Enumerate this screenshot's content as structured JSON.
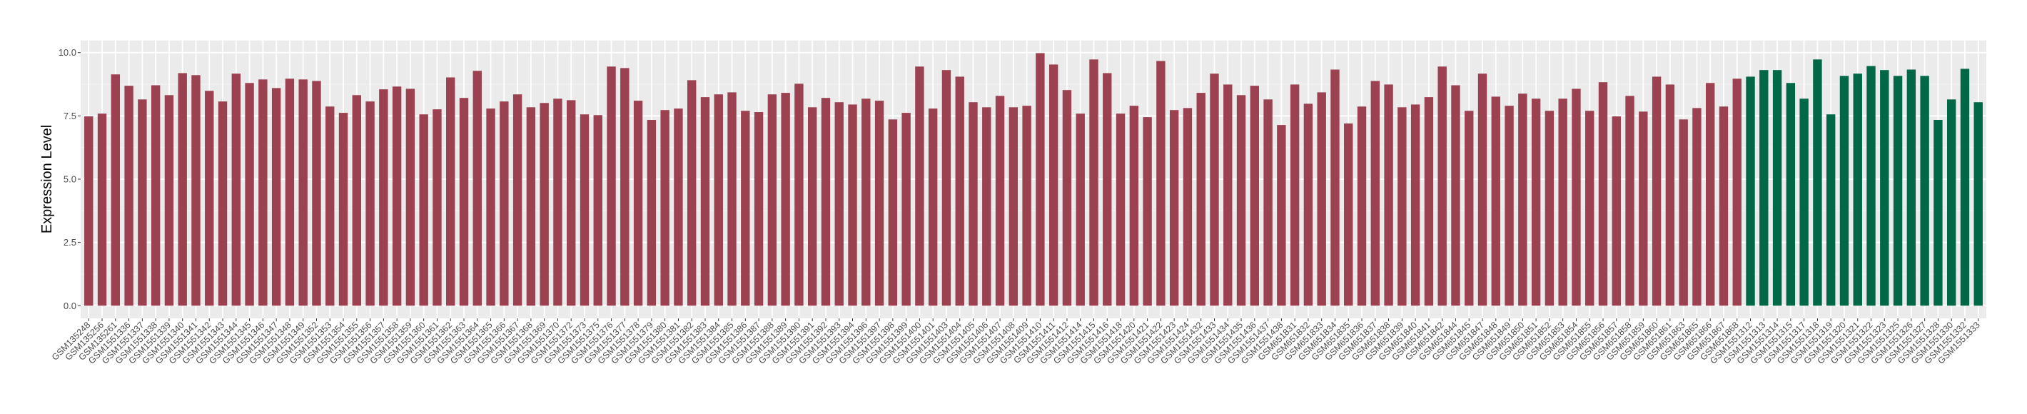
{
  "chart_data": {
    "type": "bar",
    "title": "",
    "xlabel": "",
    "ylabel": "Expression Level",
    "ylim": [
      -0.5,
      10.48
    ],
    "yticks": [
      "0.0",
      "2.5",
      "5.0",
      "7.5",
      "10.0"
    ],
    "grid": true,
    "palette": [
      "#9B4150",
      "#006747"
    ],
    "categories": [
      "GSM135248",
      "GSM135256",
      "GSM135261",
      "GSM1551336",
      "GSM1551337",
      "GSM1551338",
      "GSM1551339",
      "GSM1551340",
      "GSM1551341",
      "GSM1551342",
      "GSM1551343",
      "GSM1551344",
      "GSM1551345",
      "GSM1551346",
      "GSM1551347",
      "GSM1551348",
      "GSM1551349",
      "GSM1551352",
      "GSM1551353",
      "GSM1551354",
      "GSM1551355",
      "GSM1551356",
      "GSM1551357",
      "GSM1551358",
      "GSM1551359",
      "GSM1551360",
      "GSM1551361",
      "GSM1551362",
      "GSM1551363",
      "GSM1551364",
      "GSM1551365",
      "GSM1551366",
      "GSM1551367",
      "GSM1551368",
      "GSM1551369",
      "GSM1551370",
      "GSM1551372",
      "GSM1551373",
      "GSM1551375",
      "GSM1551376",
      "GSM1551377",
      "GSM1551378",
      "GSM1551379",
      "GSM1551380",
      "GSM1551381",
      "GSM1551382",
      "GSM1551383",
      "GSM1551384",
      "GSM1551385",
      "GSM1551386",
      "GSM1551387",
      "GSM1551388",
      "GSM1551389",
      "GSM1551390",
      "GSM1551391",
      "GSM1551392",
      "GSM1551393",
      "GSM1551394",
      "GSM1551396",
      "GSM1551397",
      "GSM1551398",
      "GSM1551399",
      "GSM1551400",
      "GSM1551401",
      "GSM1551403",
      "GSM1551404",
      "GSM1551405",
      "GSM1551406",
      "GSM1551407",
      "GSM1551408",
      "GSM1551409",
      "GSM1551410",
      "GSM1551411",
      "GSM1551412",
      "GSM1551414",
      "GSM1551415",
      "GSM1551416",
      "GSM1551418",
      "GSM1551420",
      "GSM1551421",
      "GSM1551422",
      "GSM1551423",
      "GSM1551424",
      "GSM1551432",
      "GSM1551433",
      "GSM1551434",
      "GSM1551435",
      "GSM1551436",
      "GSM1551437",
      "GSM1551438",
      "GSM651831",
      "GSM651832",
      "GSM651833",
      "GSM651834",
      "GSM651835",
      "GSM651836",
      "GSM651837",
      "GSM651838",
      "GSM651839",
      "GSM651840",
      "GSM651841",
      "GSM651842",
      "GSM651844",
      "GSM651845",
      "GSM651847",
      "GSM651848",
      "GSM651849",
      "GSM651850",
      "GSM651851",
      "GSM651852",
      "GSM651853",
      "GSM651854",
      "GSM651855",
      "GSM651856",
      "GSM651857",
      "GSM651858",
      "GSM651859",
      "GSM651860",
      "GSM651861",
      "GSM651863",
      "GSM651865",
      "GSM651866",
      "GSM651867",
      "GSM651868",
      "GSM1551312",
      "GSM1551313",
      "GSM1551314",
      "GSM1551315",
      "GSM1551317",
      "GSM1551318",
      "GSM1551319",
      "GSM1551320",
      "GSM1551321",
      "GSM1551322",
      "GSM1551323",
      "GSM1551325",
      "GSM1551326",
      "GSM1551327",
      "GSM1551328",
      "GSM1551330",
      "GSM1551332",
      "GSM1551333"
    ],
    "values": [
      7.48,
      7.59,
      9.14,
      8.69,
      8.15,
      8.71,
      8.32,
      9.19,
      9.11,
      8.49,
      8.07,
      9.17,
      8.8,
      8.94,
      8.6,
      8.97,
      8.94,
      8.88,
      7.87,
      7.62,
      8.32,
      8.07,
      8.55,
      8.66,
      8.57,
      7.56,
      7.76,
      9.02,
      8.21,
      9.28,
      7.79,
      8.07,
      8.35,
      7.84,
      8.01,
      8.18,
      8.12,
      7.56,
      7.53,
      9.45,
      9.39,
      8.1,
      7.34,
      7.73,
      7.79,
      8.91,
      8.24,
      8.35,
      8.43,
      7.7,
      7.65,
      8.35,
      8.41,
      8.77,
      7.84,
      8.21,
      8.04,
      7.95,
      8.18,
      8.1,
      7.36,
      7.62,
      9.45,
      7.79,
      9.31,
      9.05,
      8.04,
      7.84,
      8.29,
      7.84,
      7.9,
      9.98,
      9.53,
      8.52,
      7.59,
      9.73,
      9.19,
      7.59,
      7.9,
      7.45,
      9.67,
      7.73,
      7.81,
      8.41,
      9.17,
      8.74,
      8.32,
      8.69,
      8.15,
      7.14,
      8.74,
      7.98,
      8.43,
      9.33,
      7.2,
      7.87,
      8.88,
      8.74,
      7.84,
      7.95,
      8.24,
      9.45,
      8.71,
      7.7,
      9.17,
      8.26,
      7.9,
      8.38,
      8.18,
      7.7,
      8.18,
      8.57,
      7.7,
      8.83,
      7.48,
      8.29,
      7.67,
      9.05,
      8.74,
      7.36,
      7.81,
      8.8,
      7.87,
      8.97,
      9.05,
      9.31,
      9.31,
      8.8,
      8.18,
      9.73,
      7.56,
      9.08,
      9.17,
      9.47,
      9.31,
      9.08,
      9.33,
      9.08,
      7.34,
      8.15,
      9.36,
      8.04
    ],
    "groups": [
      0,
      0,
      0,
      0,
      0,
      0,
      0,
      0,
      0,
      0,
      0,
      0,
      0,
      0,
      0,
      0,
      0,
      0,
      0,
      0,
      0,
      0,
      0,
      0,
      0,
      0,
      0,
      0,
      0,
      0,
      0,
      0,
      0,
      0,
      0,
      0,
      0,
      0,
      0,
      0,
      0,
      0,
      0,
      0,
      0,
      0,
      0,
      0,
      0,
      0,
      0,
      0,
      0,
      0,
      0,
      0,
      0,
      0,
      0,
      0,
      0,
      0,
      0,
      0,
      0,
      0,
      0,
      0,
      0,
      0,
      0,
      0,
      0,
      0,
      0,
      0,
      0,
      0,
      0,
      0,
      0,
      0,
      0,
      0,
      0,
      0,
      0,
      0,
      0,
      0,
      0,
      0,
      0,
      0,
      0,
      0,
      0,
      0,
      0,
      0,
      0,
      0,
      0,
      0,
      0,
      0,
      0,
      0,
      0,
      0,
      0,
      0,
      0,
      0,
      0,
      0,
      0,
      0,
      0,
      0,
      0,
      0,
      0,
      0,
      1,
      1,
      1,
      1,
      1,
      1,
      1,
      1,
      1,
      1,
      1,
      1,
      1,
      1,
      1,
      1,
      1,
      1
    ]
  }
}
